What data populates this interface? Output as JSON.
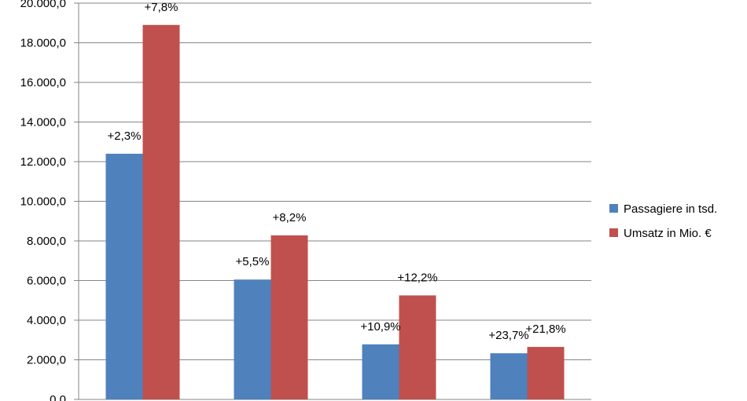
{
  "chart_data": {
    "type": "bar",
    "categories": [
      "",
      "",
      "",
      ""
    ],
    "series": [
      {
        "name": "Passagiere in tsd.",
        "color": "#4F81BD",
        "values": [
          12400,
          6050,
          2780,
          2330
        ],
        "labels": [
          "+2,3%",
          "+5,5%",
          "+10,9%",
          "+23,7%"
        ]
      },
      {
        "name": "Umsatz in Mio. €",
        "color": "#C0504D",
        "values": [
          18900,
          8280,
          5250,
          2650
        ],
        "labels": [
          "+7,8%",
          "+8,2%",
          "+12,2%",
          "+21,8%"
        ]
      }
    ],
    "ylim": [
      0,
      20000
    ],
    "yticks": [
      {
        "value": 0,
        "label": "0,0"
      },
      {
        "value": 2000,
        "label": "2.000,0"
      },
      {
        "value": 4000,
        "label": "4.000,0"
      },
      {
        "value": 6000,
        "label": "6.000,0"
      },
      {
        "value": 8000,
        "label": "8.000,0"
      },
      {
        "value": 10000,
        "label": "10.000,0"
      },
      {
        "value": 12000,
        "label": "12.000,0"
      },
      {
        "value": 14000,
        "label": "14.000,0"
      },
      {
        "value": 16000,
        "label": "16.000,0"
      },
      {
        "value": 18000,
        "label": "18.000,0"
      },
      {
        "value": 20000,
        "label": "20.000,0"
      }
    ],
    "grid": true,
    "legend": "right",
    "gridline_color": "#868686"
  }
}
